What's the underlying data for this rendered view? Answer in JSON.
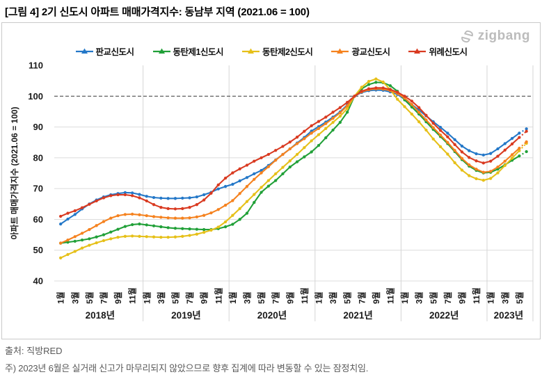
{
  "title": "[그림 4] 2기 신도시 아파트 매매가격지수: 동남부 지역 (2021.06 = 100)",
  "logo": {
    "text": "zigbang"
  },
  "source": "출처: 직방RED",
  "note": "주) 2023년 6월은 실거래 신고가 마무리되지 않았으므로 향후 집계에 따라 변동할 수 있는 잠정치임.",
  "chart_data": {
    "type": "line",
    "title": "2기 신도시 아파트 매매가격지수: 동남부 지역",
    "ylabel": "아파트 매매가격지수 (2021.06 = 100)",
    "ylim": [
      40,
      112
    ],
    "yticks": [
      40,
      50,
      60,
      70,
      80,
      90,
      100,
      110
    ],
    "reference_line": 100,
    "grid": true,
    "x_start": "2018-01",
    "x_end": "2023-06",
    "last_segment_dashed": true,
    "year_labels": [
      "2018년",
      "2019년",
      "2020년",
      "2021년",
      "2022년",
      "2023년"
    ],
    "months_per_year": [
      12,
      12,
      12,
      12,
      12,
      6
    ],
    "tick_month_numbers": [
      1,
      3,
      5,
      7,
      9,
      11
    ],
    "month_suffix": "월",
    "series": [
      {
        "name": "판교신도시",
        "key": "pangyo",
        "color": "#2478c8",
        "values": [
          58.5,
          60.1,
          61.6,
          63.4,
          65.0,
          66.3,
          67.3,
          68.0,
          68.4,
          68.7,
          68.6,
          68.1,
          67.5,
          67.1,
          66.9,
          66.8,
          66.8,
          66.9,
          67.0,
          67.3,
          68.0,
          68.8,
          69.9,
          70.7,
          71.4,
          72.5,
          73.6,
          74.8,
          75.9,
          77.5,
          79.3,
          81.1,
          82.9,
          84.8,
          86.6,
          88.7,
          90.1,
          91.6,
          93.2,
          94.9,
          97.2,
          100.0,
          101.2,
          101.8,
          102.0,
          101.9,
          101.4,
          100.6,
          99.0,
          97.3,
          95.5,
          93.6,
          91.7,
          89.9,
          88.0,
          85.9,
          83.8,
          82.3,
          81.3,
          80.9,
          81.4,
          82.9,
          84.6,
          86.3,
          88.0,
          89.4
        ]
      },
      {
        "name": "동탄제1신도시",
        "key": "dongtan1",
        "color": "#21a038",
        "values": [
          52.3,
          52.6,
          52.9,
          53.3,
          53.7,
          54.3,
          55.0,
          55.9,
          56.8,
          57.7,
          58.3,
          58.5,
          58.2,
          57.9,
          57.6,
          57.3,
          57.1,
          57.0,
          56.9,
          56.8,
          56.7,
          56.7,
          57.0,
          57.6,
          58.4,
          60.0,
          62.0,
          65.5,
          68.8,
          70.8,
          72.6,
          74.8,
          77.0,
          78.7,
          80.3,
          81.9,
          84.0,
          86.5,
          89.0,
          91.5,
          94.8,
          100.0,
          102.4,
          103.8,
          104.5,
          104.4,
          103.4,
          101.6,
          98.8,
          96.5,
          94.2,
          91.7,
          89.2,
          86.9,
          84.6,
          82.0,
          79.4,
          77.3,
          75.9,
          75.1,
          75.3,
          76.3,
          77.7,
          79.2,
          80.6,
          82.0
        ]
      },
      {
        "name": "동탄제2신도시",
        "key": "dongtan2",
        "color": "#e6c019",
        "values": [
          47.5,
          48.6,
          49.6,
          50.7,
          51.6,
          52.4,
          53.1,
          53.7,
          54.2,
          54.5,
          54.6,
          54.5,
          54.4,
          54.3,
          54.2,
          54.2,
          54.3,
          54.5,
          54.8,
          55.2,
          55.8,
          56.5,
          57.5,
          59.2,
          61.3,
          63.5,
          65.8,
          68.1,
          70.4,
          72.6,
          74.8,
          76.9,
          79.0,
          81.1,
          83.3,
          85.5,
          87.5,
          89.5,
          91.5,
          93.5,
          96.0,
          100.0,
          102.9,
          104.8,
          105.6,
          104.6,
          102.1,
          99.0,
          96.6,
          94.2,
          91.7,
          89.0,
          86.1,
          83.6,
          81.2,
          78.4,
          76.0,
          74.2,
          73.2,
          72.7,
          73.3,
          75.1,
          77.5,
          79.9,
          82.3,
          84.7
        ]
      },
      {
        "name": "광교신도시",
        "key": "gwanggyo",
        "color": "#f5821f",
        "values": [
          52.3,
          53.3,
          54.4,
          55.5,
          56.7,
          58.0,
          59.3,
          60.4,
          61.2,
          61.6,
          61.7,
          61.5,
          61.2,
          60.9,
          60.7,
          60.5,
          60.4,
          60.4,
          60.5,
          60.8,
          61.3,
          62.1,
          63.2,
          64.6,
          66.1,
          68.4,
          70.7,
          73.0,
          75.1,
          77.1,
          79.2,
          81.1,
          82.9,
          84.6,
          86.2,
          88.0,
          89.5,
          91.1,
          92.8,
          94.6,
          96.9,
          100.0,
          101.4,
          102.1,
          102.4,
          102.3,
          101.8,
          100.9,
          99.4,
          97.3,
          94.8,
          92.3,
          89.8,
          87.4,
          85.0,
          82.4,
          79.8,
          77.7,
          76.3,
          75.3,
          75.6,
          77.0,
          78.9,
          81.0,
          83.1,
          85.2
        ]
      },
      {
        "name": "위례신도시",
        "key": "wirye",
        "color": "#d93a21",
        "values": [
          61.0,
          62.0,
          62.8,
          63.8,
          64.9,
          66.0,
          67.0,
          67.7,
          68.0,
          68.0,
          67.7,
          67.0,
          66.0,
          64.8,
          63.9,
          63.5,
          63.4,
          63.5,
          63.9,
          64.8,
          66.3,
          68.5,
          71.2,
          73.4,
          75.1,
          76.4,
          77.6,
          78.9,
          80.0,
          81.1,
          82.4,
          83.7,
          85.1,
          86.7,
          88.6,
          90.4,
          91.8,
          93.2,
          94.8,
          96.3,
          98.0,
          100.0,
          101.6,
          102.4,
          102.7,
          102.7,
          102.2,
          101.3,
          100.0,
          98.4,
          96.3,
          93.8,
          91.2,
          88.9,
          86.8,
          84.3,
          81.9,
          80.1,
          79.0,
          78.3,
          78.9,
          80.5,
          82.5,
          84.5,
          86.6,
          88.6
        ]
      }
    ]
  }
}
